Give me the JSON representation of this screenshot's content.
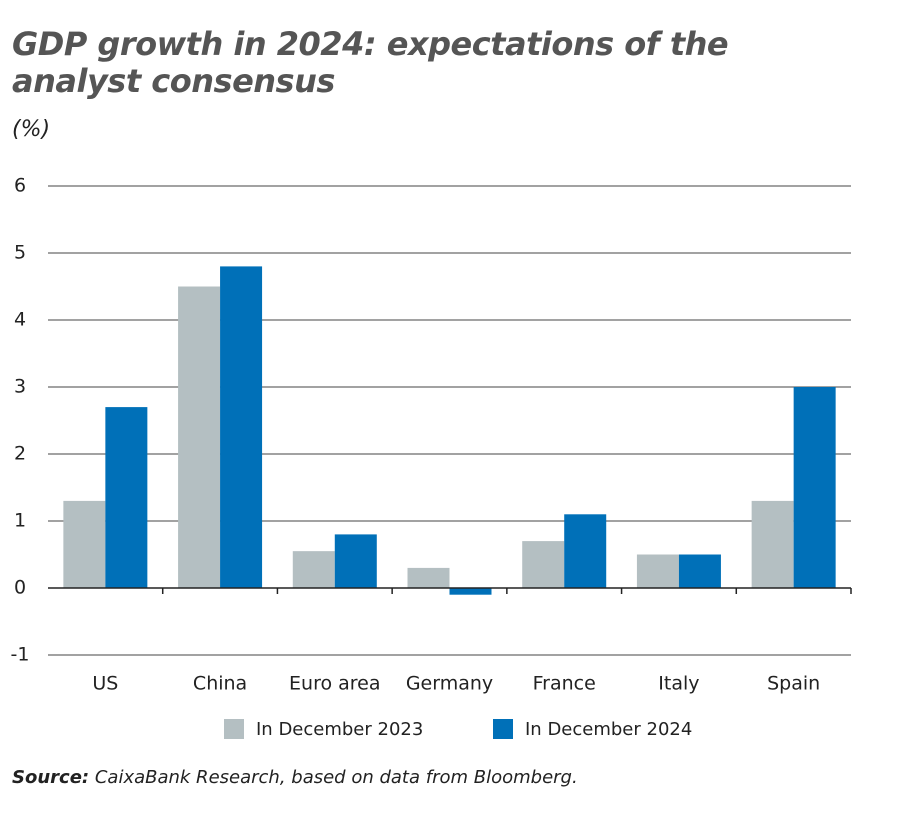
{
  "chart_data": {
    "type": "bar",
    "title": "GDP growth in 2024: expectations of the analyst consensus",
    "subtitle": "(%)",
    "categories": [
      "US",
      "China",
      "Euro area",
      "Germany",
      "France",
      "Italy",
      "Spain"
    ],
    "series": [
      {
        "name": "In December 2023",
        "color": "#b4bfc2",
        "values": [
          1.3,
          4.5,
          0.55,
          0.3,
          0.7,
          0.5,
          1.3
        ]
      },
      {
        "name": "In December 2024",
        "color": "#0070b8",
        "values": [
          2.7,
          4.8,
          0.8,
          -0.1,
          1.1,
          0.5,
          3.0
        ]
      }
    ],
    "ylim": [
      -1,
      6
    ],
    "yticks": [
      -1,
      0,
      1,
      2,
      3,
      4,
      5,
      6
    ],
    "grid": true,
    "source_label": "Source:",
    "source": "CaixaBank Research, based on data from Bloomberg."
  }
}
